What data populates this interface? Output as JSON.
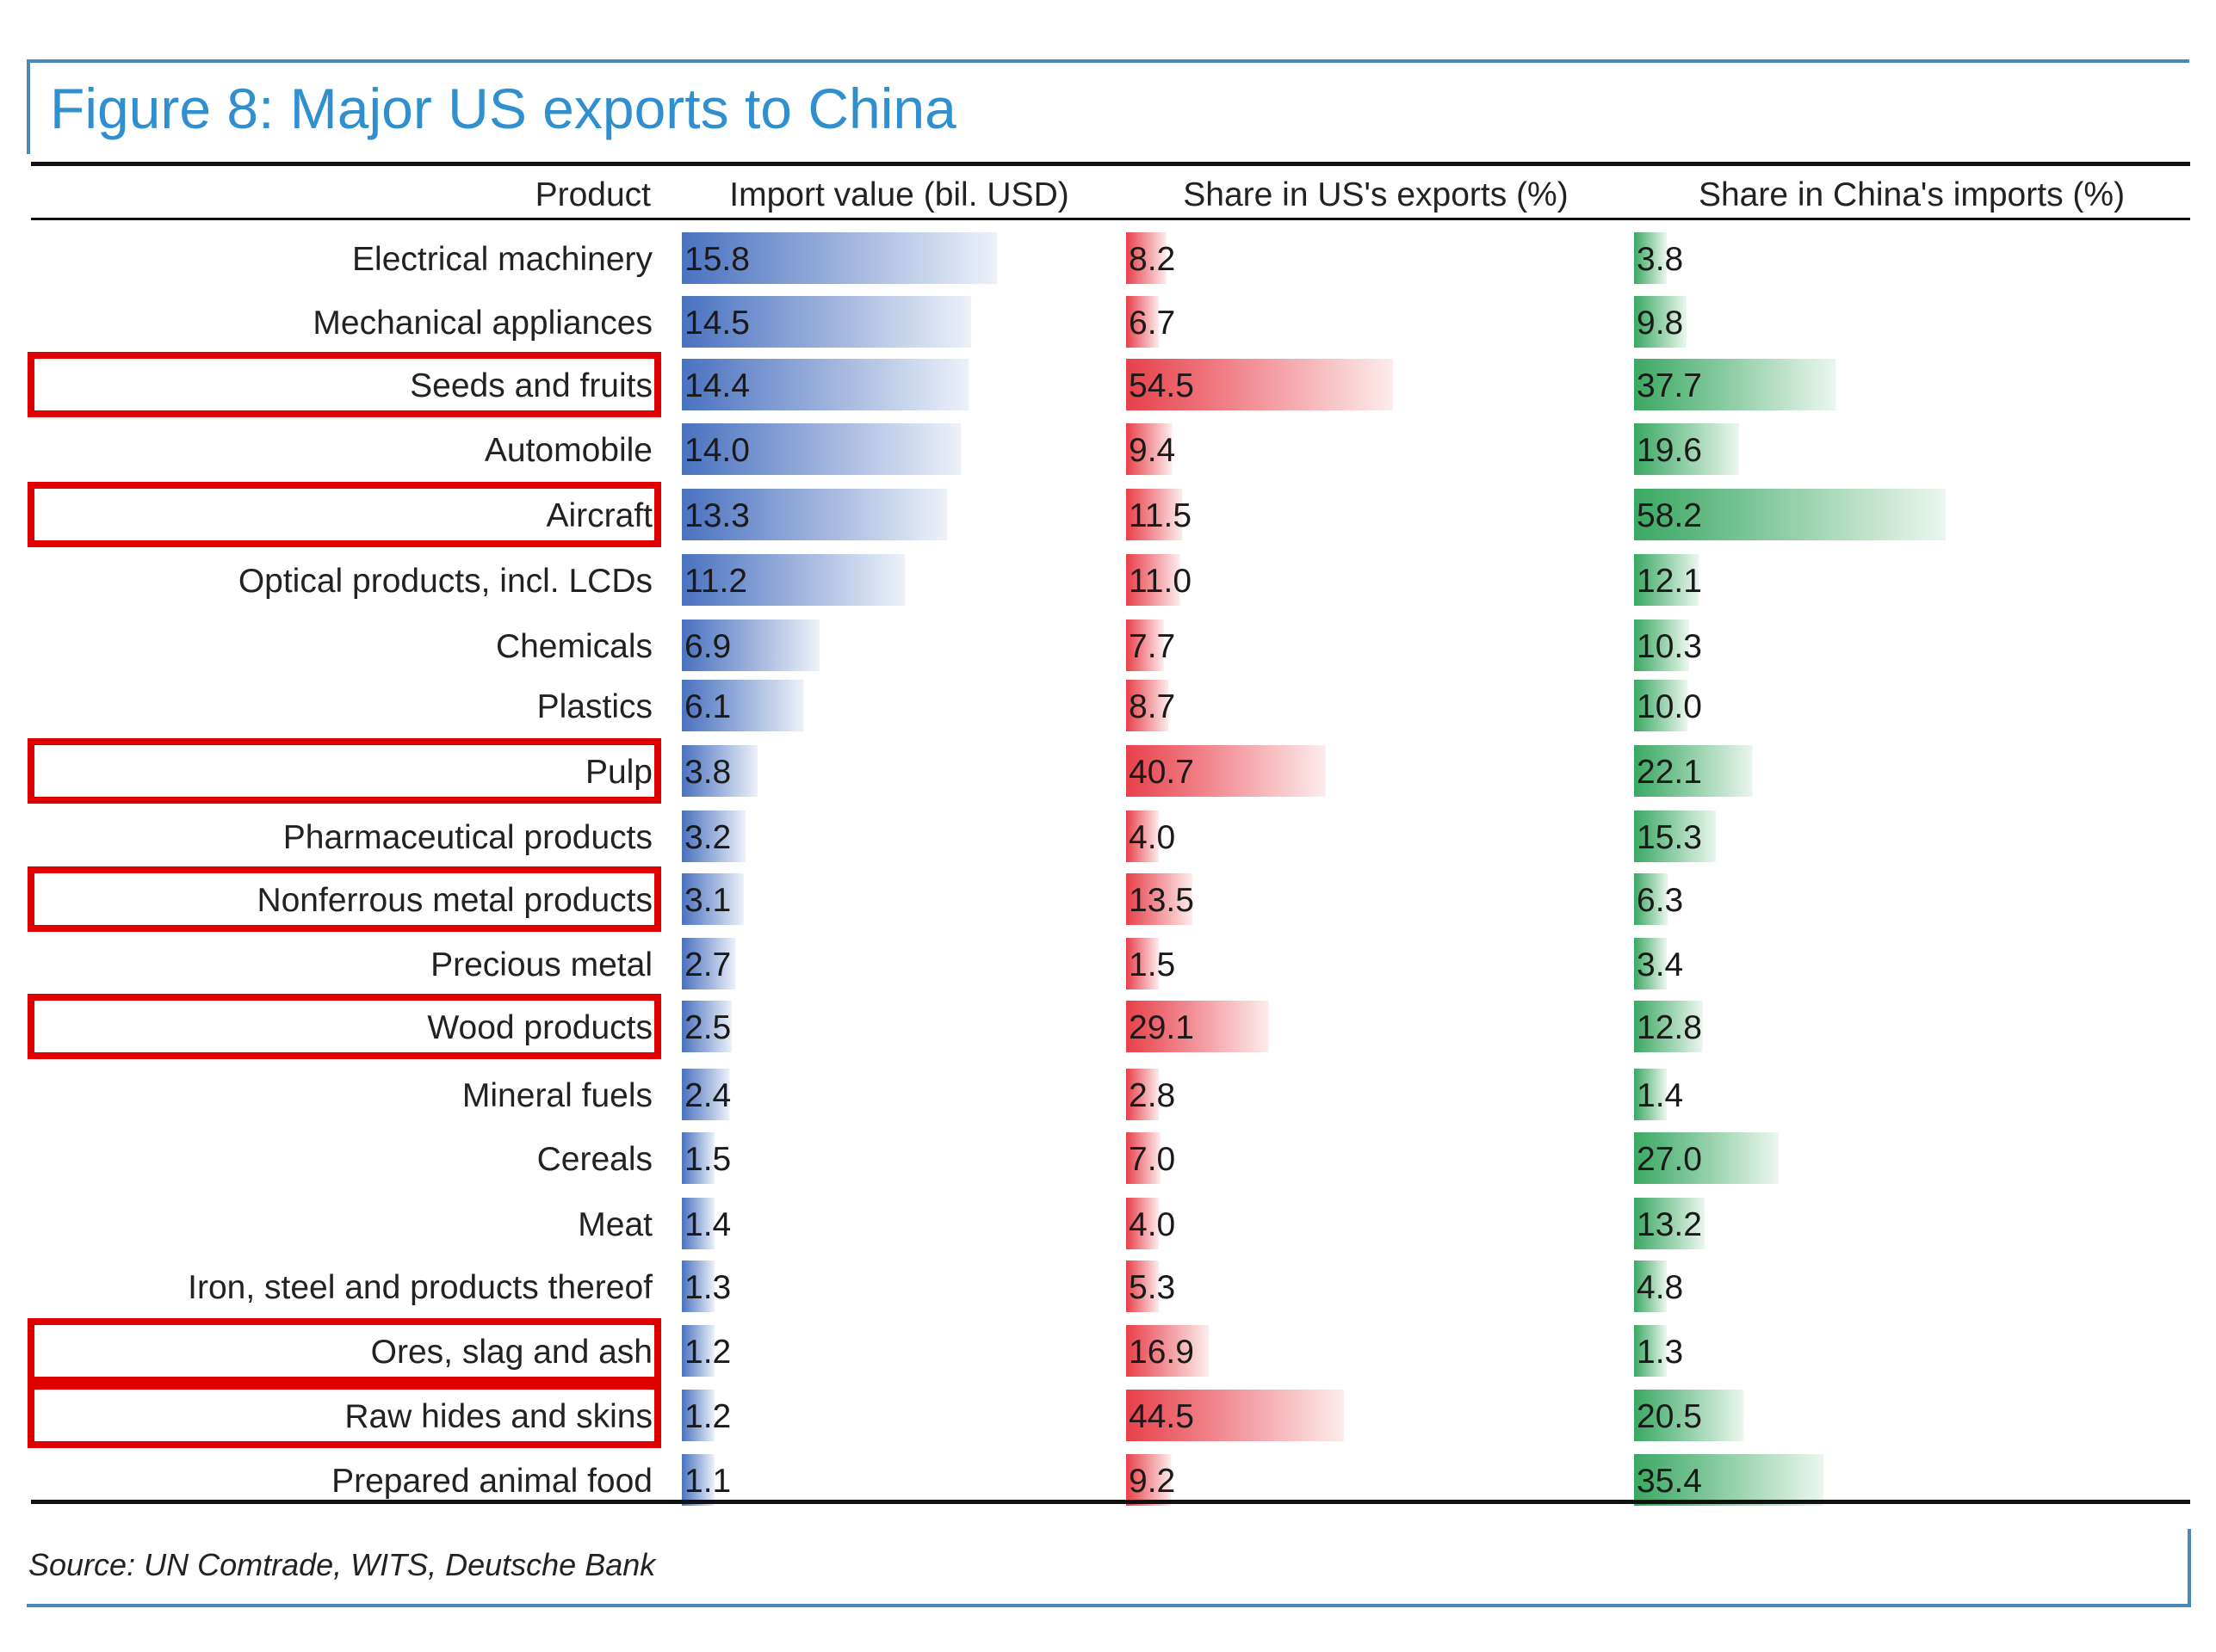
{
  "title": "Figure 8: Major US exports to China",
  "headers": {
    "product": "Product",
    "col1": "Import value (bil. USD)",
    "col2": "Share in US's exports (%)",
    "col3": "Share in China's imports (%)"
  },
  "source": "Source: UN Comtrade, WITS, Deutsche Bank",
  "colors": {
    "col1_bar": "#4a72c0",
    "col2_bar": "#e8404a",
    "col3_bar": "#3aa862",
    "highlight_box": "#e00000",
    "accent": "#2f8fcf"
  },
  "chart_data": {
    "type": "bar",
    "categories": [
      "Electrical machinery",
      "Mechanical appliances",
      "Seeds and fruits",
      "Automobile",
      "Aircraft",
      "Optical products, incl. LCDs",
      "Chemicals",
      "Plastics",
      "Pulp",
      "Pharmaceutical products",
      "Nonferrous metal products",
      "Precious metal",
      "Wood products",
      "Mineral fuels",
      "Cereals",
      "Meat",
      "Iron, steel and products thereof",
      "Ores, slag and ash",
      "Raw hides and skins",
      "Prepared animal food"
    ],
    "series": [
      {
        "name": "Import value (bil. USD)",
        "values": [
          15.8,
          14.5,
          14.4,
          14.0,
          13.3,
          11.2,
          6.9,
          6.1,
          3.8,
          3.2,
          3.1,
          2.7,
          2.5,
          2.4,
          1.5,
          1.4,
          1.3,
          1.2,
          1.2,
          1.1
        ],
        "labels": [
          "15.8",
          "14.5",
          "14.4",
          "14.0",
          "13.3",
          "11.2",
          "6.9",
          "6.1",
          "3.8",
          "3.2",
          "3.1",
          "2.7",
          "2.5",
          "2.4",
          "1.5",
          "1.4",
          "1.3",
          "1.2",
          "1.2",
          "1.1"
        ]
      },
      {
        "name": "Share in US's exports (%)",
        "values": [
          8.2,
          6.7,
          54.5,
          9.4,
          11.5,
          11.0,
          7.7,
          8.7,
          40.7,
          4.0,
          13.5,
          1.5,
          29.1,
          2.8,
          7.0,
          4.0,
          5.3,
          16.9,
          44.5,
          9.2
        ],
        "labels": [
          "8.2",
          "6.7",
          "54.5",
          "9.4",
          "11.5",
          "11.0",
          "7.7",
          "8.7",
          "40.7",
          "4.0",
          "13.5",
          "1.5",
          "29.1",
          "2.8",
          "7.0",
          "4.0",
          "5.3",
          "16.9",
          "44.5",
          "9.2"
        ]
      },
      {
        "name": "Share in China's imports (%)",
        "values": [
          3.8,
          9.8,
          37.7,
          19.6,
          58.2,
          12.1,
          10.3,
          10.0,
          22.1,
          15.3,
          6.3,
          3.4,
          12.8,
          1.4,
          27.0,
          13.2,
          4.8,
          1.3,
          20.5,
          35.4
        ],
        "labels": [
          "3.8",
          "9.8",
          "37.7",
          "19.6",
          "58.2",
          "12.1",
          "10.3",
          "10.0",
          "22.1",
          "15.3",
          "6.3",
          "3.4",
          "12.8",
          "1.4",
          "27.0",
          "13.2",
          "4.8",
          "1.3",
          "20.5",
          "35.4"
        ]
      }
    ],
    "highlighted": [
      "Seeds and fruits",
      "Aircraft",
      "Pulp",
      "Nonferrous metal products",
      "Wood products",
      "Ores, slag and ash",
      "Raw hides and skins"
    ],
    "grid": false
  }
}
